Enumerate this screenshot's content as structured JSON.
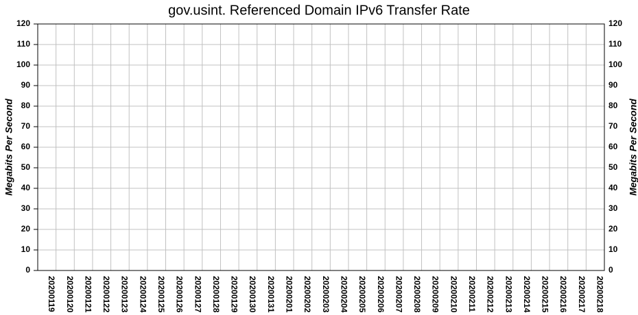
{
  "chart_data": {
    "type": "bar",
    "title": "gov.usint. Referenced Domain IPv6 Transfer Rate",
    "ylabel": "Megabits Per Second",
    "y2label": "Megabits Per Second",
    "categories": [
      "20200119",
      "20200120",
      "20200121",
      "20200122",
      "20200123",
      "20200124",
      "20200125",
      "20200126",
      "20200127",
      "20200128",
      "20200129",
      "20200130",
      "20200131",
      "20200201",
      "20200202",
      "20200203",
      "20200204",
      "20200205",
      "20200206",
      "20200207",
      "20200208",
      "20200209",
      "20200210",
      "20200211",
      "20200212",
      "20200213",
      "20200214",
      "20200215",
      "20200216",
      "20200217",
      "20200218"
    ],
    "values": [
      0,
      0,
      0,
      0,
      0,
      0,
      0,
      0,
      0,
      0,
      0,
      0,
      0,
      0,
      0,
      0,
      0,
      0,
      0,
      0,
      0,
      0,
      0,
      0,
      0,
      0,
      0,
      0,
      0,
      0,
      0
    ],
    "color": "#000080",
    "ylim": [
      0,
      120
    ],
    "yticks": [
      0,
      10,
      20,
      30,
      40,
      50,
      60,
      70,
      80,
      90,
      100,
      110,
      120
    ],
    "y2lim": [
      0,
      120
    ],
    "y2ticks": [
      0,
      10,
      20,
      30,
      40,
      50,
      60,
      70,
      80,
      90,
      100,
      110,
      120
    ],
    "grid": true
  }
}
